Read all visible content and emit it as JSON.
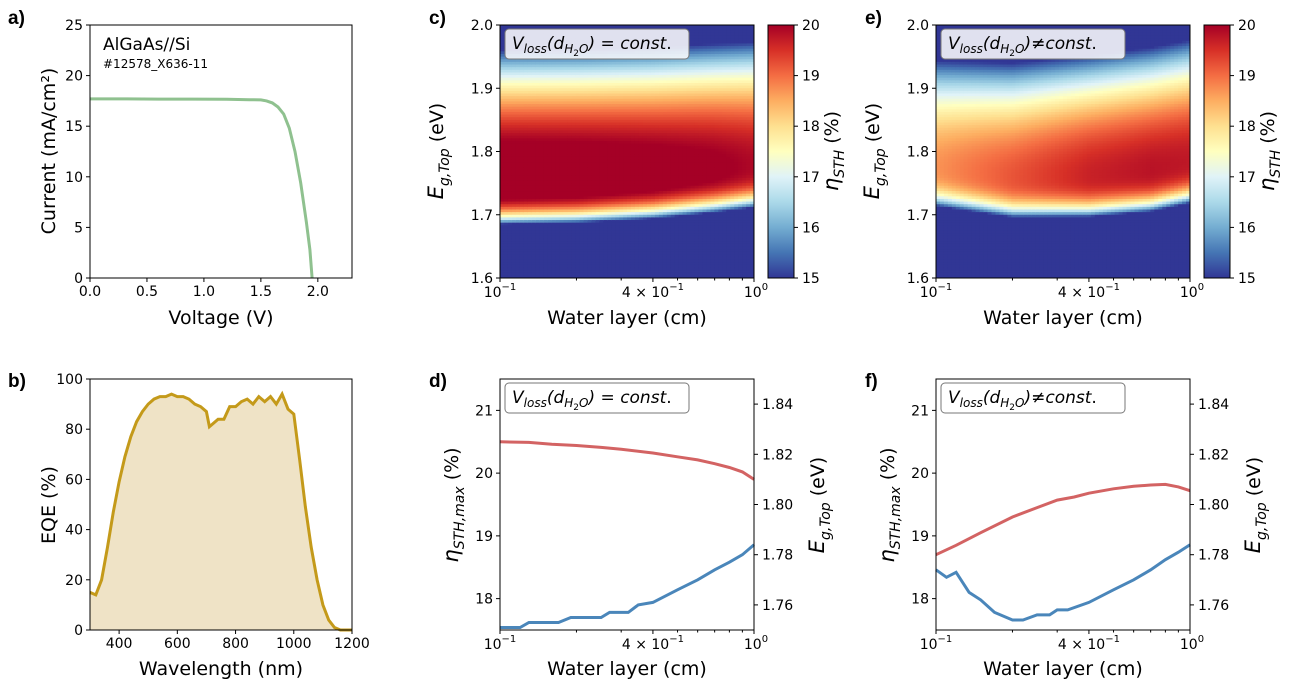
{
  "chart_data": [
    {
      "panel": "a)",
      "type": "line",
      "annotation": "AlGaAs//Si",
      "annotation2": "#12578_X636-11",
      "xlabel": "Voltage (V)",
      "ylabel": "Current (mA/cm²)",
      "xlim": [
        0,
        2.3
      ],
      "ylim": [
        0,
        25
      ],
      "xticks": [
        0.0,
        0.5,
        1.0,
        1.5,
        2.0
      ],
      "xtick_labels": [
        "0.0",
        "0.5",
        "1.0",
        "1.5",
        "2.0"
      ],
      "yticks": [
        0,
        5,
        10,
        15,
        20,
        25
      ],
      "ytick_labels": [
        "0",
        "5",
        "10",
        "15",
        "20",
        "25"
      ],
      "color": "#8fc18f",
      "series": [
        {
          "x": [
            0,
            0.3,
            0.6,
            0.9,
            1.2,
            1.4,
            1.5,
            1.55,
            1.6,
            1.65,
            1.7,
            1.75,
            1.8,
            1.85,
            1.9,
            1.93,
            1.95
          ],
          "values": [
            17.7,
            17.7,
            17.68,
            17.68,
            17.66,
            17.62,
            17.6,
            17.5,
            17.3,
            16.9,
            16.2,
            14.8,
            12.5,
            9.4,
            5.5,
            2.8,
            0
          ]
        }
      ]
    },
    {
      "panel": "b)",
      "type": "area",
      "xlabel": "Wavelength (nm)",
      "ylabel": "EQE (%)",
      "xlim": [
        300,
        1200
      ],
      "ylim": [
        0,
        100
      ],
      "xticks": [
        400,
        600,
        800,
        1000,
        1200
      ],
      "xtick_labels": [
        "400",
        "600",
        "800",
        "1000",
        "1200"
      ],
      "yticks": [
        0,
        20,
        40,
        60,
        80,
        100
      ],
      "ytick_labels": [
        "0",
        "20",
        "40",
        "60",
        "80",
        "100"
      ],
      "color": "#c49a1a",
      "fill": "#efe3c6",
      "series": [
        {
          "x": [
            300,
            320,
            340,
            360,
            380,
            400,
            420,
            440,
            460,
            480,
            500,
            520,
            540,
            560,
            580,
            600,
            620,
            640,
            660,
            680,
            700,
            710,
            720,
            740,
            760,
            780,
            800,
            820,
            840,
            860,
            880,
            900,
            920,
            940,
            960,
            980,
            1000,
            1020,
            1040,
            1060,
            1080,
            1100,
            1120,
            1140,
            1160,
            1180,
            1200
          ],
          "values": [
            15,
            14,
            20,
            33,
            47,
            59,
            69,
            77,
            83,
            87,
            90,
            92,
            93,
            93,
            94,
            93,
            93,
            92,
            90,
            89,
            87,
            81,
            82,
            84,
            84,
            89,
            89,
            91,
            92,
            90,
            93,
            91,
            93,
            90,
            94,
            88,
            86,
            68,
            49,
            33,
            20,
            10,
            4,
            1,
            0,
            0,
            0
          ]
        }
      ]
    },
    {
      "panel": "c)",
      "type": "heatmap",
      "annotation": "V_loss(d_H2O) = const.",
      "xlabel": "Water layer (cm)",
      "ylabel": "E_g,Top (eV)",
      "xscale": "log",
      "xlim": [
        0.1,
        1.0
      ],
      "ylim": [
        1.6,
        2.0
      ],
      "yticks": [
        1.6,
        1.7,
        1.8,
        1.9,
        2.0
      ],
      "ytick_labels": [
        "1.6",
        "1.7",
        "1.8",
        "1.9",
        "2.0"
      ],
      "xtick_labels": [
        "10",
        "4 × 10",
        "10"
      ],
      "xtick_exponents": [
        "−1",
        "−1",
        "0"
      ],
      "colorbar_label": "η_STH (%)",
      "colorbar_range": [
        15,
        20
      ],
      "colorbar_ticks": [
        "15",
        "16",
        "17",
        "18",
        "19",
        "20"
      ],
      "ridge_x": [
        0.1,
        0.2,
        0.4,
        0.7,
        1.0
      ],
      "ridge_eg": [
        1.755,
        1.757,
        1.763,
        1.772,
        1.779
      ],
      "peak_eta": [
        20.5,
        20.45,
        20.3,
        20.1,
        19.9
      ]
    },
    {
      "panel": "d)",
      "type": "line",
      "annotation": "V_loss(d_H2O) = const.",
      "xlabel": "Water layer (cm)",
      "xscale": "log",
      "xlim": [
        0.1,
        1.0
      ],
      "ylabel_left": "η_STH,max (%)",
      "ylabel_right": "E_g,Top (eV)",
      "ylim_left": [
        17.5,
        21.5
      ],
      "ylim_right": [
        1.75,
        1.85
      ],
      "yticks_left": [
        "18",
        "19",
        "20",
        "21"
      ],
      "yticks_right": [
        "1.76",
        "1.78",
        "1.80",
        "1.82",
        "1.84"
      ],
      "xtick_labels": [
        "10",
        "4 × 10",
        "10"
      ],
      "xtick_exponents": [
        "−1",
        "−1",
        "0"
      ],
      "series": [
        {
          "axis": "left",
          "color": "#d36363",
          "x": [
            0.1,
            0.13,
            0.16,
            0.2,
            0.25,
            0.3,
            0.4,
            0.5,
            0.6,
            0.7,
            0.8,
            0.9,
            1.0
          ],
          "values": [
            20.5,
            20.49,
            20.46,
            20.44,
            20.41,
            20.38,
            20.32,
            20.26,
            20.21,
            20.15,
            20.09,
            20.02,
            19.9
          ]
        },
        {
          "axis": "right",
          "color": "#4a86ba",
          "x": [
            0.1,
            0.12,
            0.13,
            0.17,
            0.19,
            0.25,
            0.27,
            0.32,
            0.35,
            0.4,
            0.5,
            0.6,
            0.7,
            0.8,
            0.9,
            1.0
          ],
          "values": [
            1.751,
            1.751,
            1.753,
            1.753,
            1.755,
            1.755,
            1.757,
            1.757,
            1.76,
            1.761,
            1.766,
            1.77,
            1.774,
            1.777,
            1.78,
            1.784
          ]
        }
      ]
    },
    {
      "panel": "e)",
      "type": "heatmap",
      "annotation": "V_loss(d_H2O) ≠ const.",
      "xlabel": "Water layer (cm)",
      "ylabel": "E_g,Top (eV)",
      "xscale": "log",
      "xlim": [
        0.1,
        1.0
      ],
      "ylim": [
        1.6,
        2.0
      ],
      "yticks": [
        1.6,
        1.7,
        1.8,
        1.9,
        2.0
      ],
      "ytick_labels": [
        "1.6",
        "1.7",
        "1.8",
        "1.9",
        "2.0"
      ],
      "xtick_labels": [
        "10",
        "4 × 10",
        "10"
      ],
      "xtick_exponents": [
        "−1",
        "−1",
        "0"
      ],
      "colorbar_label": "η_STH (%)",
      "colorbar_range": [
        15,
        20
      ],
      "colorbar_ticks": [
        "15",
        "16",
        "17",
        "18",
        "19",
        "20"
      ],
      "ridge_x": [
        0.1,
        0.2,
        0.4,
        0.7,
        1.0
      ],
      "ridge_eg": [
        1.775,
        1.76,
        1.763,
        1.772,
        1.785
      ],
      "peak_eta": [
        18.7,
        19.2,
        19.65,
        19.8,
        19.75
      ]
    },
    {
      "panel": "f)",
      "type": "line",
      "annotation": "V_loss(d_H2O) ≠ const.",
      "xlabel": "Water layer (cm)",
      "xscale": "log",
      "xlim": [
        0.1,
        1.0
      ],
      "ylabel_left": "η_STH,max (%)",
      "ylabel_right": "E_g,Top (eV)",
      "ylim_left": [
        17.5,
        21.5
      ],
      "ylim_right": [
        1.75,
        1.85
      ],
      "yticks_left": [
        "18",
        "19",
        "20",
        "21"
      ],
      "yticks_right": [
        "1.76",
        "1.78",
        "1.80",
        "1.82",
        "1.84"
      ],
      "xtick_labels": [
        "10",
        "4 × 10",
        "10"
      ],
      "xtick_exponents": [
        "−1",
        "−1",
        "0"
      ],
      "series": [
        {
          "axis": "left",
          "color": "#d36363",
          "x": [
            0.1,
            0.12,
            0.15,
            0.2,
            0.25,
            0.3,
            0.35,
            0.4,
            0.5,
            0.6,
            0.7,
            0.8,
            0.9,
            1.0
          ],
          "values": [
            18.7,
            18.85,
            19.05,
            19.3,
            19.45,
            19.57,
            19.62,
            19.68,
            19.75,
            19.79,
            19.81,
            19.82,
            19.78,
            19.72
          ]
        },
        {
          "axis": "right",
          "color": "#4a86ba",
          "x": [
            0.1,
            0.11,
            0.12,
            0.135,
            0.15,
            0.17,
            0.2,
            0.22,
            0.25,
            0.28,
            0.3,
            0.33,
            0.4,
            0.5,
            0.6,
            0.7,
            0.8,
            0.9,
            1.0
          ],
          "values": [
            1.774,
            1.771,
            1.773,
            1.765,
            1.762,
            1.757,
            1.754,
            1.754,
            1.756,
            1.756,
            1.758,
            1.758,
            1.761,
            1.766,
            1.77,
            1.774,
            1.778,
            1.781,
            1.784
          ]
        }
      ]
    }
  ]
}
